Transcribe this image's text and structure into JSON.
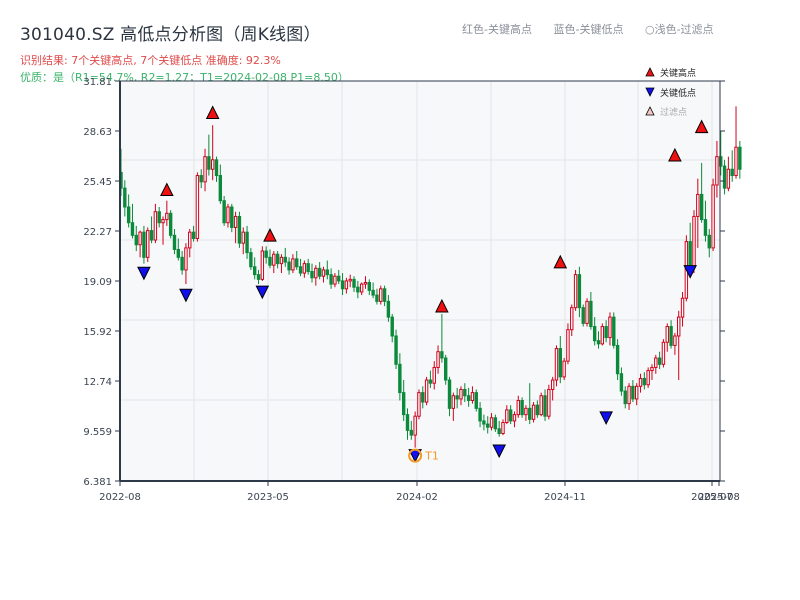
{
  "header": {
    "title": "301040.SZ 高低点分析图（周K线图）",
    "result_line": "识别结果: 7个关键高点, 7个关键低点   准确度: 92.3%",
    "quality_line": "优质：是（R1=54.7%, R2=1.27；T1=2024-02-08 P1=8.50）"
  },
  "top_legend": {
    "red": "红色-关键高点",
    "blue": "蓝色-关键低点",
    "light": "○浅色-过滤点"
  },
  "colors": {
    "up": "#d0021b",
    "down": "#0a8a3a",
    "high_marker": "#ee1111",
    "low_marker": "#1010ee",
    "t1_ring": "#f59a23",
    "plot_bg": "#f7f8fa",
    "grid": "#e2e5ea",
    "axis": "#2d3a4a"
  },
  "chart_data": {
    "type": "candlestick",
    "title": "301040.SZ 高低点分析图（周K线图）",
    "xlabel": "",
    "ylabel": "",
    "ylim": [
      6.381,
      31.81
    ],
    "y_ticks": [
      "31.81",
      "28.63",
      "25.45",
      "22.27",
      "19.09",
      "15.92",
      "12.74",
      "9.559",
      "6.381"
    ],
    "x_ticks": [
      "2022-08",
      "2023-05",
      "2024-02",
      "2024-11",
      "2025-07",
      "2025-08"
    ],
    "grid": true,
    "legend": {
      "position": "top-right",
      "entries": [
        "关键高点",
        "关键低点",
        "过滤点"
      ]
    },
    "key_highs": [
      {
        "week": 12,
        "price": 24.4
      },
      {
        "week": 24,
        "price": 29.3
      },
      {
        "week": 39,
        "price": 21.5
      },
      {
        "week": 84,
        "price": 17.0
      },
      {
        "week": 115,
        "price": 19.8
      },
      {
        "week": 145,
        "price": 26.6
      },
      {
        "week": 152,
        "price": 28.4
      }
    ],
    "key_lows": [
      {
        "week": 6,
        "price": 20.1
      },
      {
        "week": 17,
        "price": 18.7
      },
      {
        "week": 37,
        "price": 18.9
      },
      {
        "week": 77,
        "price": 8.5
      },
      {
        "week": 99,
        "price": 8.8
      },
      {
        "week": 127,
        "price": 10.9
      },
      {
        "week": 149,
        "price": 20.2
      }
    ],
    "annotation": {
      "label": "T1",
      "week": 77,
      "price": 8.5,
      "date": "2024-02-08"
    },
    "ohlc": [
      [
        26.0,
        27.5,
        24.5,
        25.0
      ],
      [
        25.0,
        25.5,
        23.2,
        23.8
      ],
      [
        23.8,
        24.6,
        22.5,
        22.8
      ],
      [
        22.8,
        24.0,
        21.8,
        22.0
      ],
      [
        22.0,
        22.6,
        21.0,
        21.4
      ],
      [
        21.4,
        22.3,
        20.6,
        22.2
      ],
      [
        22.2,
        22.6,
        20.2,
        20.6
      ],
      [
        20.6,
        22.5,
        20.3,
        22.3
      ],
      [
        22.3,
        23.2,
        21.5,
        21.7
      ],
      [
        21.7,
        24.0,
        21.5,
        23.5
      ],
      [
        23.5,
        23.8,
        22.5,
        22.8
      ],
      [
        22.8,
        23.2,
        21.4,
        23.0
      ],
      [
        23.0,
        24.2,
        22.6,
        23.4
      ],
      [
        23.4,
        23.6,
        21.8,
        22.0
      ],
      [
        22.0,
        22.4,
        20.8,
        21.1
      ],
      [
        21.1,
        21.8,
        20.4,
        20.6
      ],
      [
        20.6,
        21.0,
        19.5,
        19.8
      ],
      [
        19.8,
        21.5,
        18.9,
        21.2
      ],
      [
        21.2,
        22.4,
        20.6,
        22.2
      ],
      [
        22.2,
        22.6,
        21.6,
        21.8
      ],
      [
        21.8,
        26.0,
        21.6,
        25.8
      ],
      [
        25.8,
        26.2,
        25.0,
        25.4
      ],
      [
        25.4,
        27.5,
        24.8,
        27.0
      ],
      [
        27.0,
        28.4,
        25.8,
        26.2
      ],
      [
        26.2,
        29.0,
        25.5,
        26.8
      ],
      [
        26.8,
        27.0,
        25.4,
        25.8
      ],
      [
        25.8,
        26.5,
        24.0,
        24.2
      ],
      [
        24.2,
        24.5,
        22.6,
        22.8
      ],
      [
        22.8,
        24.0,
        22.5,
        23.8
      ],
      [
        23.8,
        24.0,
        22.2,
        22.5
      ],
      [
        22.5,
        23.5,
        21.5,
        23.2
      ],
      [
        23.2,
        23.5,
        21.2,
        21.5
      ],
      [
        21.5,
        22.5,
        20.8,
        22.2
      ],
      [
        22.2,
        22.6,
        20.5,
        20.9
      ],
      [
        20.9,
        21.2,
        19.8,
        20.0
      ],
      [
        20.0,
        20.6,
        19.2,
        19.5
      ],
      [
        19.5,
        19.8,
        18.9,
        19.2
      ],
      [
        19.2,
        21.3,
        19.1,
        21.0
      ],
      [
        21.0,
        21.3,
        20.2,
        20.6
      ],
      [
        20.6,
        21.1,
        19.9,
        20.1
      ],
      [
        20.1,
        21.0,
        19.6,
        20.8
      ],
      [
        20.8,
        21.0,
        19.9,
        20.2
      ],
      [
        20.2,
        20.8,
        19.6,
        20.6
      ],
      [
        20.6,
        21.2,
        20.0,
        20.3
      ],
      [
        20.3,
        20.6,
        19.5,
        19.8
      ],
      [
        19.8,
        20.8,
        19.6,
        20.5
      ],
      [
        20.5,
        21.0,
        19.8,
        20.0
      ],
      [
        20.0,
        20.5,
        19.4,
        19.6
      ],
      [
        19.6,
        20.4,
        19.3,
        20.2
      ],
      [
        20.2,
        20.5,
        19.5,
        19.7
      ],
      [
        19.7,
        20.2,
        19.0,
        19.3
      ],
      [
        19.3,
        20.1,
        18.8,
        19.9
      ],
      [
        19.9,
        20.3,
        19.2,
        19.4
      ],
      [
        19.4,
        20.0,
        19.0,
        19.8
      ],
      [
        19.8,
        20.4,
        19.2,
        19.5
      ],
      [
        19.5,
        19.9,
        18.6,
        18.9
      ],
      [
        18.9,
        19.6,
        18.7,
        19.4
      ],
      [
        19.4,
        19.8,
        18.9,
        19.1
      ],
      [
        19.1,
        19.6,
        18.2,
        18.6
      ],
      [
        18.6,
        19.3,
        18.3,
        19.1
      ],
      [
        19.1,
        19.5,
        18.7,
        19.2
      ],
      [
        19.2,
        19.4,
        18.4,
        18.7
      ],
      [
        18.7,
        19.1,
        18.0,
        18.4
      ],
      [
        18.4,
        19.0,
        18.2,
        18.9
      ],
      [
        18.9,
        19.4,
        18.6,
        19.0
      ],
      [
        19.0,
        19.2,
        18.2,
        18.5
      ],
      [
        18.5,
        19.0,
        18.0,
        18.2
      ],
      [
        18.2,
        18.6,
        17.6,
        17.8
      ],
      [
        17.8,
        18.8,
        17.6,
        18.6
      ],
      [
        18.6,
        18.8,
        17.5,
        17.8
      ],
      [
        17.8,
        18.2,
        16.5,
        16.8
      ],
      [
        16.8,
        17.0,
        15.2,
        15.6
      ],
      [
        15.6,
        16.0,
        13.5,
        13.8
      ],
      [
        13.8,
        14.5,
        11.5,
        12.0
      ],
      [
        12.0,
        12.8,
        10.2,
        10.6
      ],
      [
        10.6,
        11.0,
        9.0,
        9.6
      ],
      [
        9.6,
        10.2,
        9.0,
        9.3
      ],
      [
        9.3,
        10.8,
        8.5,
        10.5
      ],
      [
        10.5,
        12.2,
        10.3,
        12.0
      ],
      [
        12.0,
        12.4,
        11.0,
        11.4
      ],
      [
        11.4,
        13.0,
        11.2,
        12.8
      ],
      [
        12.8,
        13.4,
        12.3,
        12.6
      ],
      [
        12.6,
        14.0,
        12.2,
        13.6
      ],
      [
        13.6,
        15.0,
        13.2,
        14.6
      ],
      [
        14.6,
        17.0,
        13.9,
        14.2
      ],
      [
        14.2,
        14.4,
        12.5,
        12.8
      ],
      [
        12.8,
        13.0,
        10.5,
        11.0
      ],
      [
        11.0,
        12.0,
        10.2,
        11.8
      ],
      [
        11.8,
        12.3,
        11.0,
        11.6
      ],
      [
        11.6,
        12.4,
        11.2,
        12.2
      ],
      [
        12.2,
        12.6,
        11.4,
        11.8
      ],
      [
        11.8,
        12.3,
        11.1,
        11.5
      ],
      [
        11.5,
        12.4,
        11.3,
        12.0
      ],
      [
        12.0,
        12.2,
        10.8,
        11.0
      ],
      [
        11.0,
        11.4,
        9.8,
        10.2
      ],
      [
        10.2,
        10.6,
        9.6,
        10.0
      ],
      [
        10.0,
        10.5,
        9.4,
        9.8
      ],
      [
        9.8,
        10.7,
        9.6,
        10.4
      ],
      [
        10.4,
        10.6,
        9.5,
        9.7
      ],
      [
        9.7,
        10.2,
        9.2,
        9.4
      ],
      [
        9.4,
        10.3,
        9.3,
        10.1
      ],
      [
        10.1,
        11.2,
        10.0,
        10.9
      ],
      [
        10.9,
        11.2,
        10.0,
        10.2
      ],
      [
        10.2,
        10.8,
        9.8,
        10.6
      ],
      [
        10.6,
        11.8,
        10.4,
        11.5
      ],
      [
        11.5,
        11.7,
        10.4,
        10.6
      ],
      [
        10.6,
        11.2,
        10.2,
        11.0
      ],
      [
        11.0,
        12.6,
        10.0,
        10.3
      ],
      [
        10.3,
        11.4,
        10.1,
        11.2
      ],
      [
        11.2,
        11.5,
        10.4,
        10.6
      ],
      [
        10.6,
        12.0,
        10.5,
        11.8
      ],
      [
        11.8,
        12.2,
        10.2,
        10.5
      ],
      [
        10.5,
        12.5,
        10.3,
        12.2
      ],
      [
        12.2,
        13.0,
        11.5,
        12.8
      ],
      [
        12.8,
        15.0,
        12.4,
        14.8
      ],
      [
        14.8,
        15.6,
        12.6,
        13.0
      ],
      [
        13.0,
        14.2,
        12.8,
        14.0
      ],
      [
        14.0,
        16.4,
        13.8,
        16.0
      ],
      [
        16.0,
        17.6,
        15.6,
        17.4
      ],
      [
        17.4,
        19.8,
        17.2,
        19.5
      ],
      [
        19.5,
        20.0,
        16.8,
        17.4
      ],
      [
        17.4,
        17.6,
        16.2,
        16.4
      ],
      [
        16.4,
        18.0,
        16.2,
        17.8
      ],
      [
        17.8,
        18.4,
        16.0,
        16.2
      ],
      [
        16.2,
        16.8,
        15.0,
        15.3
      ],
      [
        15.3,
        15.9,
        14.8,
        15.1
      ],
      [
        15.1,
        16.4,
        15.0,
        16.2
      ],
      [
        16.2,
        16.6,
        15.2,
        15.5
      ],
      [
        15.5,
        17.1,
        15.0,
        16.8
      ],
      [
        16.8,
        17.1,
        14.8,
        15.0
      ],
      [
        15.0,
        15.4,
        12.8,
        13.2
      ],
      [
        13.2,
        13.6,
        11.8,
        12.1
      ],
      [
        12.1,
        12.4,
        11.0,
        11.3
      ],
      [
        11.3,
        12.6,
        10.9,
        12.4
      ],
      [
        12.4,
        12.8,
        11.4,
        11.6
      ],
      [
        11.6,
        12.6,
        11.2,
        12.4
      ],
      [
        12.4,
        13.2,
        12.0,
        12.9
      ],
      [
        12.9,
        13.3,
        12.2,
        12.5
      ],
      [
        12.5,
        13.6,
        12.3,
        13.4
      ],
      [
        13.4,
        13.8,
        12.8,
        13.6
      ],
      [
        13.6,
        14.4,
        13.2,
        14.2
      ],
      [
        14.2,
        14.6,
        13.5,
        13.8
      ],
      [
        13.8,
        15.4,
        13.6,
        15.2
      ],
      [
        15.2,
        16.4,
        14.6,
        16.2
      ],
      [
        16.2,
        16.6,
        14.8,
        15.0
      ],
      [
        15.0,
        15.8,
        14.4,
        15.6
      ],
      [
        15.6,
        17.2,
        12.8,
        16.8
      ],
      [
        16.8,
        18.4,
        16.2,
        18.0
      ],
      [
        18.0,
        22.0,
        17.8,
        21.6
      ],
      [
        21.6,
        22.8,
        19.6,
        20.0
      ],
      [
        20.0,
        23.6,
        19.6,
        23.2
      ],
      [
        23.2,
        25.6,
        21.2,
        24.6
      ],
      [
        24.6,
        26.6,
        22.8,
        23.0
      ],
      [
        23.0,
        24.2,
        21.6,
        22.0
      ],
      [
        22.0,
        22.4,
        20.6,
        21.2
      ],
      [
        21.2,
        25.6,
        21.0,
        25.2
      ],
      [
        25.2,
        28.0,
        24.4,
        27.0
      ],
      [
        27.0,
        28.6,
        25.8,
        26.4
      ],
      [
        26.4,
        26.8,
        24.6,
        25.0
      ],
      [
        25.0,
        27.0,
        24.8,
        26.2
      ],
      [
        26.2,
        27.4,
        25.4,
        25.8
      ],
      [
        25.8,
        30.2,
        25.6,
        27.6
      ],
      [
        27.6,
        28.0,
        25.6,
        26.2
      ]
    ]
  }
}
